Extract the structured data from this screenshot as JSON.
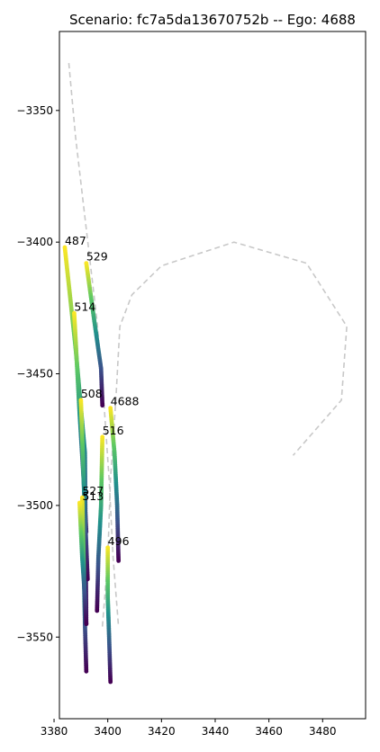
{
  "chart_data": {
    "type": "scatter",
    "title": "Scenario: fc7a5da13670752b -- Ego: 4688",
    "xlabel": "",
    "ylabel": "",
    "xlim": [
      3382,
      3496
    ],
    "ylim": [
      -3581,
      -3320
    ],
    "x_ticks": [
      3380,
      3400,
      3420,
      3440,
      3460,
      3480
    ],
    "y_ticks": [
      -3350,
      -3400,
      -3450,
      -3500,
      -3550
    ],
    "x_tick_labels": [
      "3380",
      "3400",
      "3420",
      "3440",
      "3460",
      "3480"
    ],
    "y_tick_labels": [
      "−3350",
      "−3400",
      "−3450",
      "−3500",
      "−3550"
    ],
    "grid": false,
    "colormap": "viridis",
    "lane_lines": [
      [
        [
          3385.5,
          -3332
        ],
        [
          3388,
          -3360
        ],
        [
          3392,
          -3395
        ],
        [
          3396,
          -3430
        ],
        [
          3398.5,
          -3460
        ],
        [
          3400.5,
          -3490
        ],
        [
          3402,
          -3520
        ],
        [
          3404,
          -3546
        ]
      ],
      [
        [
          3398,
          -3546
        ],
        [
          3400,
          -3520
        ],
        [
          3401,
          -3490
        ],
        [
          3403,
          -3460
        ],
        [
          3404.5,
          -3432
        ],
        [
          3409,
          -3420
        ],
        [
          3420,
          -3409
        ],
        [
          3447,
          -3400
        ],
        [
          3474,
          -3408
        ],
        [
          3489,
          -3432
        ],
        [
          3487,
          -3460
        ],
        [
          3469,
          -3481
        ]
      ]
    ],
    "series": [
      {
        "name": "487",
        "points": [
          [
            3384,
            -3402
          ],
          [
            3388,
            -3440
          ],
          [
            3391.5,
            -3480
          ],
          [
            3392,
            -3545
          ]
        ]
      },
      {
        "name": "529",
        "points": [
          [
            3392,
            -3408
          ],
          [
            3395,
            -3430
          ],
          [
            3397.5,
            -3448
          ],
          [
            3398,
            -3462
          ]
        ]
      },
      {
        "name": "514",
        "points": [
          [
            3387.5,
            -3427
          ],
          [
            3389.5,
            -3465
          ],
          [
            3391,
            -3490
          ],
          [
            3392,
            -3510
          ]
        ]
      },
      {
        "name": "508",
        "points": [
          [
            3390,
            -3460
          ],
          [
            3391,
            -3490
          ],
          [
            3392,
            -3515
          ],
          [
            3392.5,
            -3528
          ]
        ]
      },
      {
        "name": "4688",
        "points": [
          [
            3401,
            -3463
          ],
          [
            3402.5,
            -3480
          ],
          [
            3403.5,
            -3500
          ],
          [
            3404,
            -3521
          ]
        ]
      },
      {
        "name": "516",
        "points": [
          [
            3398,
            -3474
          ],
          [
            3397.5,
            -3500
          ],
          [
            3396.5,
            -3520
          ],
          [
            3396,
            -3540
          ]
        ]
      },
      {
        "name": "527",
        "points": [
          [
            3390.5,
            -3497
          ],
          [
            3391,
            -3520
          ],
          [
            3391.5,
            -3545
          ],
          [
            3392,
            -3563
          ]
        ]
      },
      {
        "name": "513",
        "points": [
          [
            3389.5,
            -3499
          ],
          [
            3390.5,
            -3520
          ],
          [
            3391.5,
            -3535
          ],
          [
            3392,
            -3545
          ]
        ]
      },
      {
        "name": "496",
        "points": [
          [
            3400,
            -3516
          ],
          [
            3400,
            -3535
          ],
          [
            3400.5,
            -3550
          ],
          [
            3401,
            -3567
          ]
        ]
      }
    ],
    "label_positions": {
      "487": [
        3384,
        -3401
      ],
      "529": [
        3392,
        -3407
      ],
      "514": [
        3387.5,
        -3426
      ],
      "508": [
        3390,
        -3459
      ],
      "4688": [
        3401,
        -3462
      ],
      "516": [
        3398,
        -3473
      ],
      "527": [
        3390.5,
        -3496
      ],
      "513": [
        3390.5,
        -3498
      ],
      "496": [
        3400,
        -3515
      ]
    }
  }
}
